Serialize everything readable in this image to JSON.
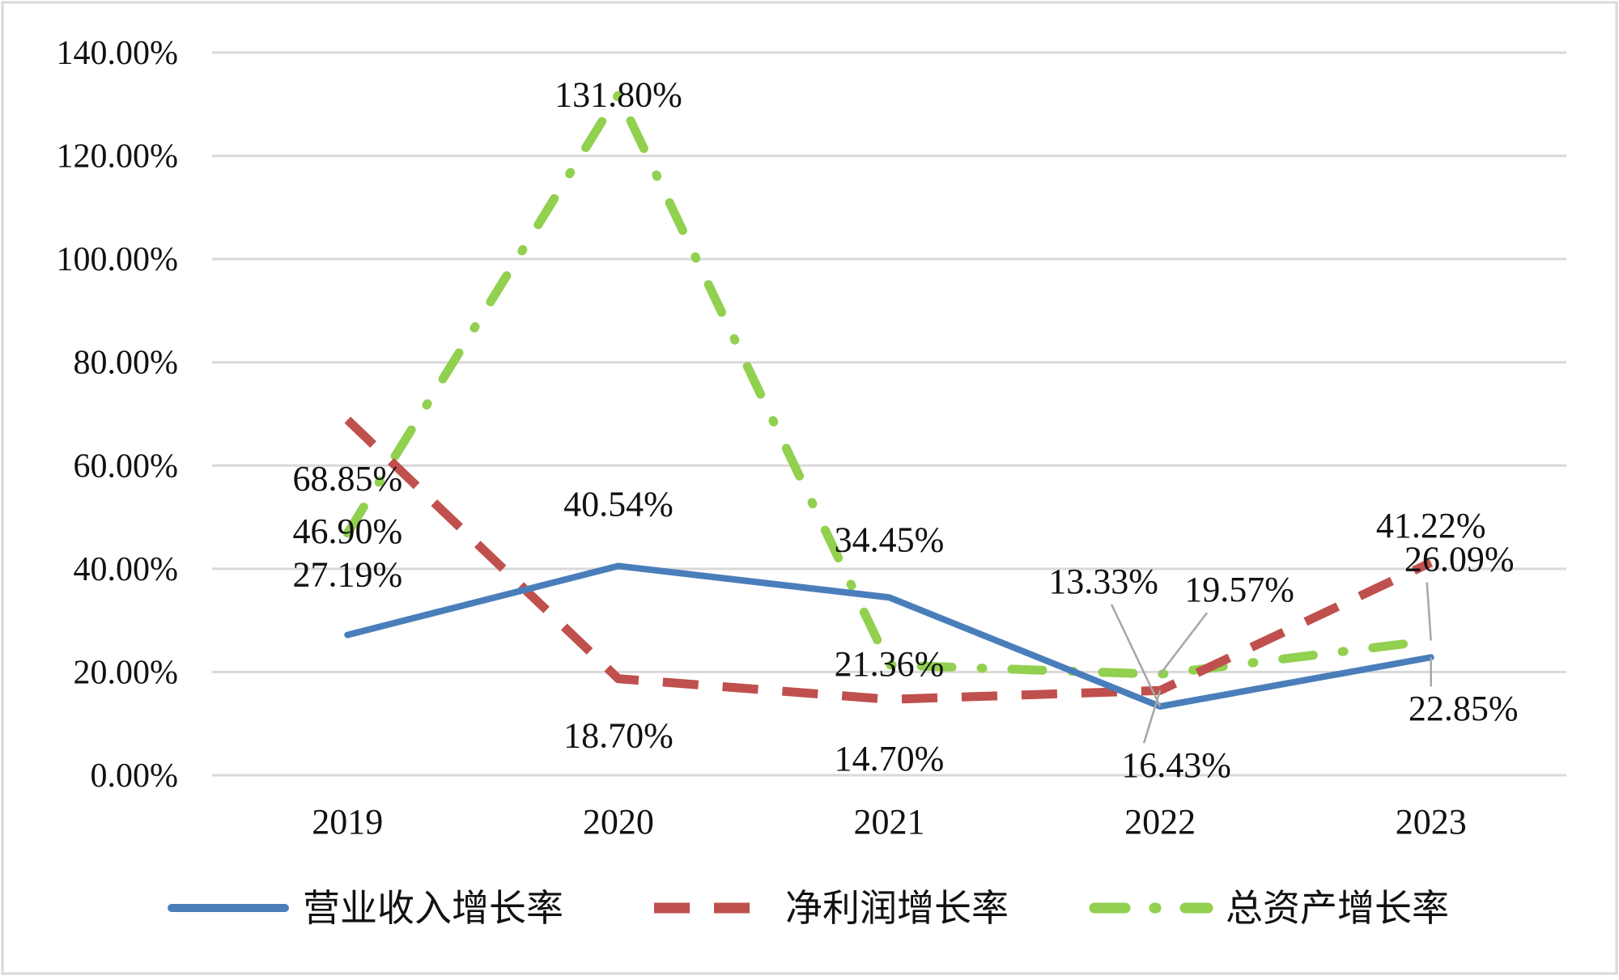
{
  "chart_data": {
    "type": "line",
    "title": "",
    "xlabel": "",
    "ylabel": "",
    "categories": [
      "2019",
      "2020",
      "2021",
      "2022",
      "2023"
    ],
    "ylim": [
      0,
      140
    ],
    "y_ticks": [
      "0.00%",
      "20.00%",
      "40.00%",
      "60.00%",
      "80.00%",
      "100.00%",
      "120.00%",
      "140.00%"
    ],
    "grid": true,
    "legend_position": "bottom",
    "series": [
      {
        "name": "营业收入增长率",
        "values": [
          27.19,
          40.54,
          34.45,
          13.33,
          22.85
        ],
        "labels": [
          "27.19%",
          "40.54%",
          "34.45%",
          "13.33%",
          "22.85%"
        ],
        "color": "#4a7ebb",
        "style": "solid"
      },
      {
        "name": "净利润增长率",
        "values": [
          68.85,
          18.7,
          14.7,
          16.43,
          41.22
        ],
        "labels": [
          "68.85%",
          "18.70%",
          "14.70%",
          "16.43%",
          "41.22%"
        ],
        "color": "#c0504d",
        "style": "dashed"
      },
      {
        "name": "总资产增长率",
        "values": [
          46.9,
          131.8,
          21.36,
          19.57,
          26.09
        ],
        "labels": [
          "46.90%",
          "131.80%",
          "21.36%",
          "19.57%",
          "26.09%"
        ],
        "color": "#92d050",
        "style": "dash-dot"
      }
    ]
  }
}
